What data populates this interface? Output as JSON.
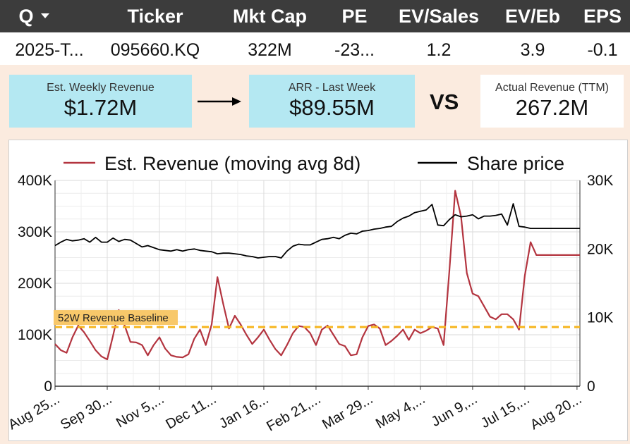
{
  "header": {
    "columns": [
      "Q",
      "Ticker",
      "Mkt Cap",
      "PE",
      "EV/Sales",
      "EV/Eb",
      "EPS"
    ],
    "row": [
      "2025-T...",
      "095660.KQ",
      "322M",
      "-23...",
      "1.2",
      "3.9",
      "-0.1"
    ]
  },
  "kpis": {
    "weekly_label": "Est. Weekly Revenue",
    "weekly_value": "$1.72M",
    "arr_label": "ARR - Last Week",
    "arr_value": "$89.55M",
    "vs_label": "VS",
    "actual_label": "Actual Revenue (TTM)",
    "actual_value": "267.2M"
  },
  "colors": {
    "header_bg": "#3c3c3c",
    "panel_bg": "#fbebdf",
    "kpi_blue": "#b4e8f2",
    "revenue_line": "#b3343f",
    "price_line": "#000000",
    "baseline": "#f6b51d"
  },
  "chart_data": {
    "type": "line",
    "legend": [
      "Est. Revenue (moving avg 8d)",
      "Share price"
    ],
    "legend_position": "top",
    "x_tick_labels": [
      "Aug 25...",
      "Sep 30...",
      "Nov 5,...",
      "Dec 11...",
      "Jan 16...",
      "Feb 21,...",
      "Mar 29...",
      "May 4,...",
      "Jun 9,...",
      "Jul 15,...",
      "Aug 20..."
    ],
    "y_left": {
      "ticks": [
        "0",
        "100K",
        "200K",
        "300K",
        "400K"
      ],
      "range": [
        0,
        400000
      ]
    },
    "y_right": {
      "ticks": [
        "0",
        "10K",
        "20K",
        "30K"
      ],
      "range": [
        0,
        30000
      ]
    },
    "baseline": {
      "label": "52W Revenue Baseline",
      "value": 115000
    },
    "days": [
      0,
      4,
      8,
      12,
      16,
      20,
      24,
      28,
      32,
      36,
      40,
      44,
      48,
      52,
      56,
      60,
      64,
      68,
      72,
      76,
      80,
      84,
      88,
      92,
      96,
      100,
      104,
      108,
      112,
      116,
      120,
      124,
      128,
      132,
      136,
      140,
      144,
      148,
      152,
      156,
      160,
      164,
      168,
      172,
      176,
      180,
      184,
      188,
      192,
      196,
      200,
      204,
      208,
      212,
      216,
      220,
      224,
      228,
      232,
      236,
      240,
      244,
      248,
      252,
      256,
      260,
      264,
      268,
      272,
      276,
      280,
      284,
      288,
      292,
      296,
      300,
      304,
      308,
      312,
      316,
      320,
      324,
      328,
      332,
      336,
      340,
      344,
      348,
      352,
      356,
      362
    ],
    "series": [
      {
        "name": "Est. Revenue (moving avg 8d)",
        "axis": "left",
        "values": [
          82000,
          70000,
          65000,
          95000,
          118000,
          105000,
          88000,
          70000,
          58000,
          52000,
          98000,
          148000,
          118000,
          86000,
          85000,
          80000,
          60000,
          80000,
          95000,
          73000,
          60000,
          57000,
          56000,
          62000,
          92000,
          110000,
          80000,
          120000,
          212000,
          160000,
          112000,
          137000,
          120000,
          100000,
          82000,
          95000,
          110000,
          90000,
          72000,
          60000,
          80000,
          103000,
          117000,
          115000,
          103000,
          80000,
          110000,
          118000,
          100000,
          82000,
          78000,
          60000,
          62000,
          95000,
          117000,
          120000,
          112000,
          80000,
          88000,
          98000,
          110000,
          90000,
          110000,
          103000,
          108000,
          115000,
          112000,
          80000,
          225000,
          380000,
          330000,
          220000,
          180000,
          175000,
          155000,
          135000,
          130000,
          140000,
          140000,
          130000,
          110000,
          215000,
          280000,
          255000,
          255000,
          255000,
          255000,
          255000,
          255000,
          255000,
          255000
        ]
      },
      {
        "name": "Share price",
        "axis": "right",
        "values": [
          20500,
          21000,
          21400,
          21200,
          21300,
          21500,
          21000,
          21700,
          21000,
          21000,
          21600,
          21100,
          21400,
          21300,
          20800,
          20300,
          20500,
          20200,
          19900,
          19800,
          19700,
          19900,
          19700,
          19900,
          20000,
          19800,
          19700,
          19600,
          19300,
          19400,
          19400,
          19300,
          19200,
          19000,
          18900,
          18700,
          18800,
          18900,
          18900,
          18700,
          19700,
          20400,
          20700,
          20600,
          20600,
          21000,
          21400,
          21500,
          21700,
          21500,
          22000,
          22300,
          22200,
          22600,
          22700,
          22900,
          23000,
          23200,
          23300,
          24000,
          24500,
          24800,
          25300,
          25500,
          25700,
          26500,
          23500,
          23400,
          24300,
          25000,
          24700,
          24800,
          25000,
          24400,
          24800,
          24800,
          24900,
          25100,
          23500,
          26600,
          23300,
          23200,
          23000,
          23000,
          23000,
          23000,
          23000,
          23000,
          23000,
          23000,
          23000
        ]
      }
    ]
  }
}
